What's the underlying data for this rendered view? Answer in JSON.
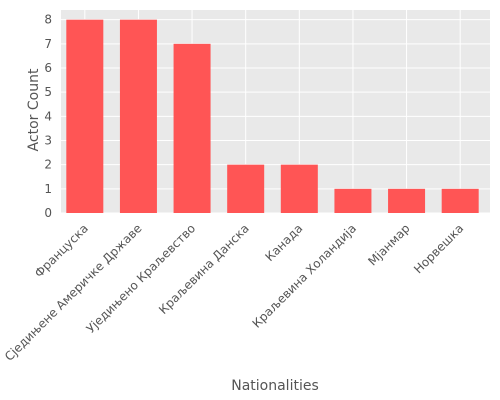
{
  "chart_data": {
    "type": "bar",
    "categories": [
      "Француска",
      "Сједињене Америчке Државе",
      "Уједињено Краљевство",
      "Краљевина Данска",
      "Канада",
      "Краљевина Холандија",
      "Мјанмар",
      "Норвешка"
    ],
    "values": [
      8,
      8,
      7,
      2,
      2,
      1,
      1,
      1
    ],
    "xlabel": "Nationalities",
    "ylabel": "Actor Count",
    "ylim": [
      0,
      8.4
    ],
    "yticks": [
      0,
      1,
      2,
      3,
      4,
      5,
      6,
      7,
      8
    ],
    "grid": true,
    "colors": {
      "bar": "#ff5555",
      "panel": "#e9e9e9",
      "grid": "#ffffff",
      "text": "#555555"
    }
  }
}
